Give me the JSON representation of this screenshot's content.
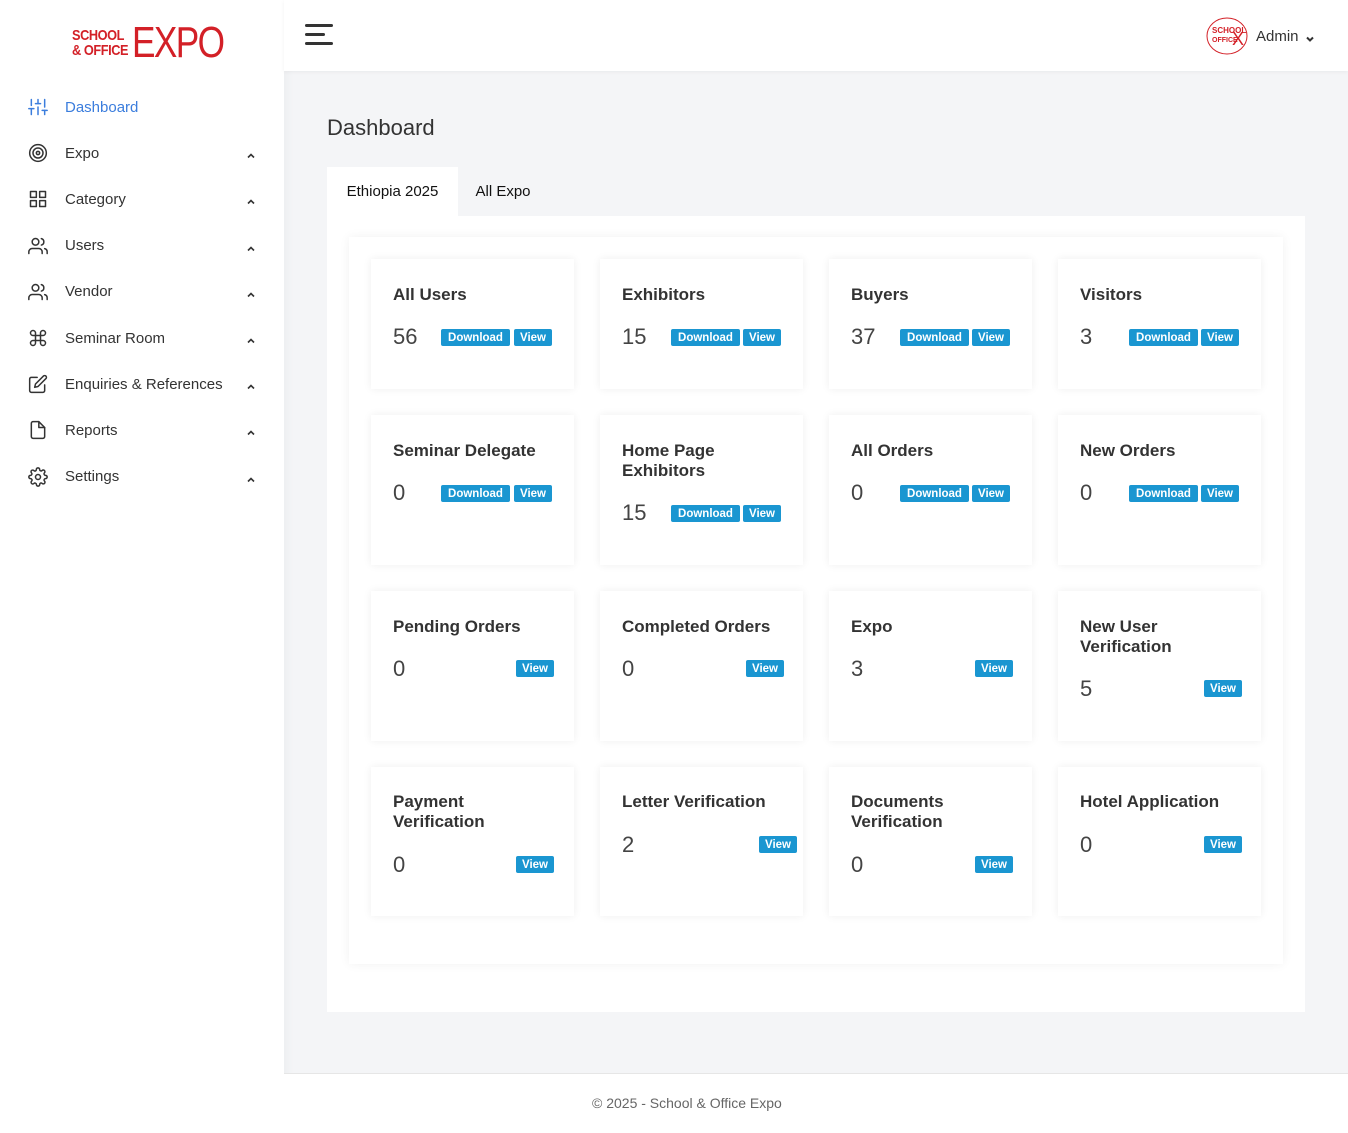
{
  "brand": {
    "logo_top": "SCHOOL",
    "logo_bottom": "& OFFICE",
    "logo_big": "EXPO"
  },
  "sidebar": {
    "items": [
      {
        "label": "Dashboard",
        "icon": "sliders-icon",
        "active": true
      },
      {
        "label": "Expo",
        "icon": "target-icon"
      },
      {
        "label": "Category",
        "icon": "grid-icon"
      },
      {
        "label": "Users",
        "icon": "users-icon"
      },
      {
        "label": "Vendor",
        "icon": "users-icon"
      },
      {
        "label": "Seminar Room",
        "icon": "command-icon"
      },
      {
        "label": "Enquiries & References",
        "icon": "edit-icon"
      },
      {
        "label": "Reports",
        "icon": "file-icon"
      },
      {
        "label": "Settings",
        "icon": "gear-icon"
      }
    ]
  },
  "topbar": {
    "user_name": "Admin"
  },
  "main": {
    "title": "Dashboard",
    "tabs": [
      "Ethiopia 2025",
      "All Expo"
    ],
    "cards": [
      {
        "title": "All Users",
        "value": "56",
        "download": "Download",
        "view": "View"
      },
      {
        "title": "Exhibitors",
        "value": "15",
        "download": "Download",
        "view": "View"
      },
      {
        "title": "Buyers",
        "value": "37",
        "download": "Download",
        "view": "View"
      },
      {
        "title": "Visitors",
        "value": "3",
        "download": "Download",
        "view": "View"
      },
      {
        "title": "Seminar Delegate",
        "value": "0",
        "download": "Download",
        "view": "View"
      },
      {
        "title": "Home Page Exhibitors",
        "value": "15",
        "download": "Download",
        "view": "View"
      },
      {
        "title": "All Orders",
        "value": "0",
        "download": "Download",
        "view": "View"
      },
      {
        "title": "New Orders",
        "value": "0",
        "download": "Download",
        "view": "View"
      },
      {
        "title": "Pending Orders",
        "value": "0",
        "view": "View"
      },
      {
        "title": "Completed Orders",
        "value": "0",
        "view": "View"
      },
      {
        "title": "Expo",
        "value": "3",
        "view": "View"
      },
      {
        "title": "New User Verification",
        "value": "5",
        "view": "View"
      },
      {
        "title": "Payment Verification",
        "value": "0",
        "view": "View"
      },
      {
        "title": "Letter Verification",
        "value": "2",
        "view": "View"
      },
      {
        "title": "Documents Verification",
        "value": "0",
        "view": "View"
      },
      {
        "title": "Hotel Application",
        "value": "0",
        "view": "View"
      }
    ]
  },
  "footer": {
    "text": "© 2025 - School & Office Expo"
  },
  "colors": {
    "brand_red": "#d32027",
    "active_blue": "#3b7ddd",
    "button_blue": "#1a96d1"
  }
}
